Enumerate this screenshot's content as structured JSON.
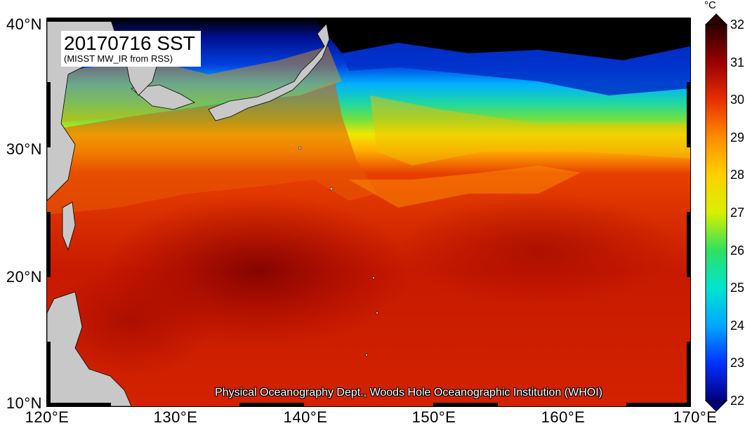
{
  "title": {
    "main": "20170716 SST",
    "subtitle": "(MISST MW_IR from RSS)"
  },
  "credit": "Physical Oceanography Dept., Woods Hole Oceanographic Institution (WHOI)",
  "axes": {
    "lat_labels": [
      "40°N",
      "30°N",
      "20°N",
      "10°N"
    ],
    "lon_labels": [
      "120°E",
      "130°E",
      "140°E",
      "150°E",
      "160°E",
      "170°E"
    ],
    "lat_range": [
      10,
      40
    ],
    "lon_range": [
      120,
      170
    ]
  },
  "colorbar": {
    "unit": "°C",
    "min": 22,
    "max": 32,
    "ticks": [
      "32",
      "31",
      "30",
      "29",
      "28",
      "27",
      "26",
      "25",
      "24",
      "23",
      "22"
    ],
    "colors": [
      "#00007f",
      "#0032ff",
      "#00a8ff",
      "#00e5d0",
      "#30e060",
      "#d8f000",
      "#ffd000",
      "#ff8c00",
      "#e63000",
      "#9a0000",
      "#2a0000"
    ]
  },
  "colors": {
    "land": "#c8c8c8",
    "no_data": "#000000",
    "frame": "#000000"
  }
}
